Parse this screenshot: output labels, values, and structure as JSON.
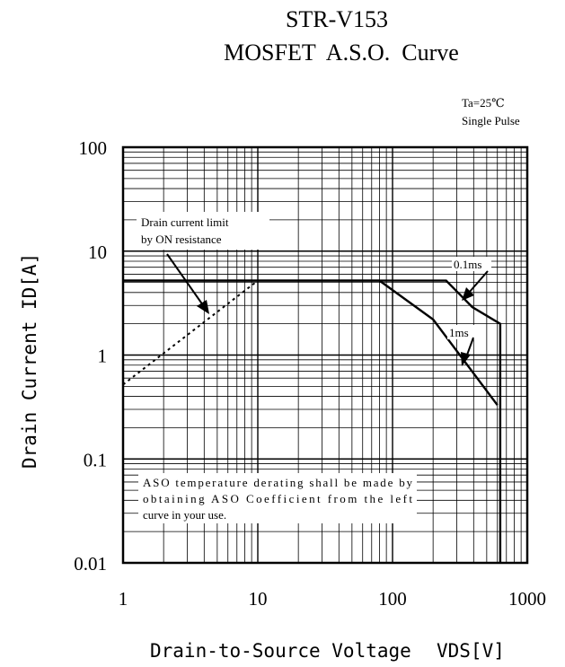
{
  "chart_data": {
    "type": "line",
    "title": "STR-V153",
    "subtitle": "MOSFET  A.S.O.  Curve",
    "conditions": [
      "Ta=25℃",
      "Single Pulse"
    ],
    "xlabel": "Drain-to-Source Voltage",
    "xlabel_symbol": "VDS[V]",
    "ylabel": "Drain Current ID[A]",
    "x_scale": "log",
    "y_scale": "log",
    "xlim": [
      1,
      1000
    ],
    "ylim": [
      0.01,
      100
    ],
    "x_ticks": [
      1,
      10,
      100,
      1000
    ],
    "x_tick_labels": [
      "1",
      "10",
      "100",
      "1000"
    ],
    "y_ticks": [
      0.01,
      0.1,
      1,
      10,
      100
    ],
    "y_tick_labels": [
      "0.01",
      "0.1",
      "1",
      "10",
      "100"
    ],
    "grid": true,
    "series": [
      {
        "name": "0.1ms",
        "style": "solid",
        "x": [
          1,
          250,
          390,
          630,
          630
        ],
        "y": [
          5.2,
          5.2,
          2.9,
          2.0,
          0.01
        ]
      },
      {
        "name": "1ms",
        "style": "solid",
        "x": [
          1,
          80,
          200,
          600
        ],
        "y": [
          5.2,
          5.2,
          2.2,
          0.33
        ]
      },
      {
        "name": "",
        "style": "dotted",
        "x": [
          1,
          10
        ],
        "y": [
          0.52,
          5.2
        ]
      }
    ],
    "annotations": {
      "on_resistance": [
        "Drain current limit",
        "by ON resistance"
      ],
      "derating_note": [
        "ASO temperature derating shall be made by",
        "obtaining ASO Coefficient from the left",
        "curve in your use."
      ]
    }
  }
}
